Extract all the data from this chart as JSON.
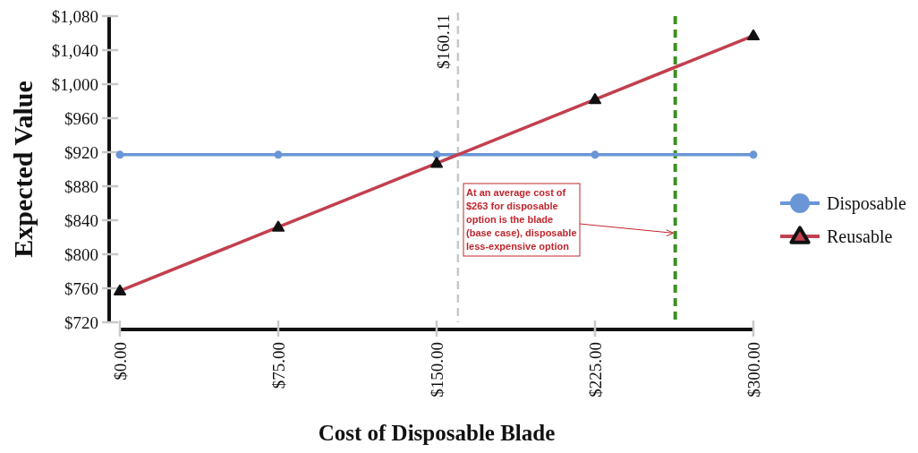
{
  "chart_data": {
    "type": "line",
    "xlabel": "Cost of Disposable Blade",
    "ylabel": "Expected Value",
    "x": [
      0,
      75,
      150,
      225,
      300
    ],
    "series": [
      {
        "name": "Disposable",
        "color": "#6a96d6",
        "marker": "circle",
        "values": [
          917,
          917,
          917,
          917,
          917
        ]
      },
      {
        "name": "Reusable",
        "color": "#c2404f",
        "marker": "triangle",
        "values": [
          757,
          832,
          907,
          982,
          1057
        ]
      }
    ],
    "xlim": [
      0,
      300
    ],
    "xticks": [
      {
        "value": 0,
        "label": "$0.00"
      },
      {
        "value": 75,
        "label": "$75.00"
      },
      {
        "value": 150,
        "label": "$150.00"
      },
      {
        "value": 225,
        "label": "$225.00"
      },
      {
        "value": 300,
        "label": "$300.00"
      }
    ],
    "ylim": [
      720,
      1080
    ],
    "yticks": [
      {
        "value": 720,
        "label": "$720"
      },
      {
        "value": 760,
        "label": "$760"
      },
      {
        "value": 800,
        "label": "$800"
      },
      {
        "value": 840,
        "label": "$840"
      },
      {
        "value": 880,
        "label": "$880"
      },
      {
        "value": 920,
        "label": "$920"
      },
      {
        "value": 960,
        "label": "$960"
      },
      {
        "value": 1000,
        "label": "$1,000"
      },
      {
        "value": 1040,
        "label": "$1,040"
      },
      {
        "value": 1080,
        "label": "$1,080"
      }
    ],
    "ref_lines": [
      {
        "axis": "x",
        "value": 160.11,
        "label": "$160.11",
        "color": "#c8c8c8",
        "line_style": "dashed"
      },
      {
        "axis": "x",
        "value": 263,
        "color": "#3f8f24",
        "line_style": "dashed"
      }
    ],
    "annotations": [
      {
        "text": "At an average cost of $263 for disposable option is the blade (base case), disposable less-expensive option",
        "x": 263,
        "y": 825
      }
    ],
    "legend": "right",
    "grid": false,
    "line_style": "solid"
  }
}
